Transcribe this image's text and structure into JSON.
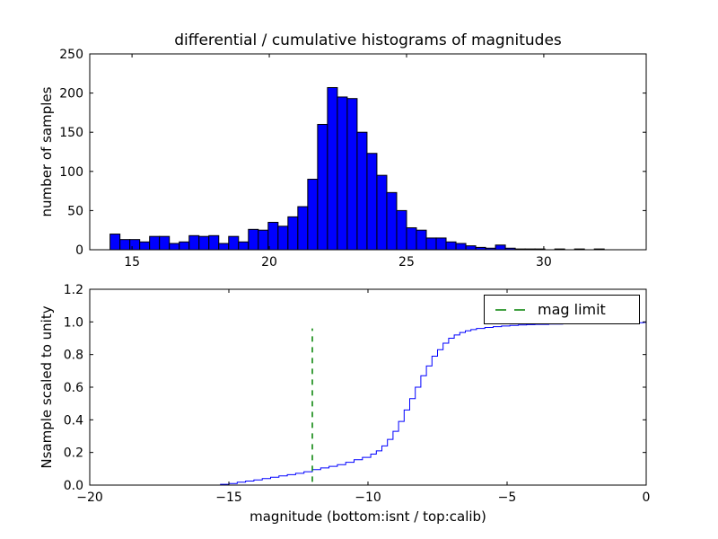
{
  "figure": {
    "background": "#ffffff"
  },
  "chart_data": [
    {
      "type": "bar",
      "title": "differential / cumulative histograms of magnitudes",
      "ylabel": "number of samples",
      "xlim": [
        13.46,
        33.73
      ],
      "ylim": [
        0,
        250
      ],
      "xtick_values": [
        15,
        20,
        25,
        30
      ],
      "xtick_labels": [
        "15",
        "20",
        "25",
        "30"
      ],
      "ytick_values": [
        0,
        50,
        100,
        150,
        200,
        250
      ],
      "ytick_labels": [
        "0",
        "50",
        "100",
        "150",
        "200",
        "250"
      ],
      "bar_color": "#0000ff",
      "bar_edge_color": "#000000",
      "bin_start": 14.2,
      "bin_width": 0.36,
      "counts": [
        20,
        13,
        13,
        10,
        17,
        17,
        8,
        10,
        18,
        17,
        18,
        8,
        17,
        10,
        26,
        25,
        35,
        30,
        42,
        55,
        90,
        160,
        207,
        195,
        193,
        150,
        123,
        95,
        73,
        50,
        28,
        25,
        15,
        15,
        10,
        8,
        5,
        3,
        2,
        6,
        2,
        1,
        1,
        1,
        0,
        1,
        0,
        1,
        0,
        1
      ]
    },
    {
      "type": "line",
      "ylabel": "Nsample scaled to unity",
      "xlabel": "magnitude (bottom:isnt / top:calib)",
      "xlim": [
        -20,
        0
      ],
      "ylim": [
        0,
        1.2
      ],
      "xtick_values": [
        -20,
        -15,
        -10,
        -5,
        0
      ],
      "xtick_labels": [
        "−20",
        "−15",
        "−10",
        "−5",
        "0"
      ],
      "ytick_values": [
        0,
        0.2,
        0.4,
        0.6,
        0.8,
        1.0,
        1.2
      ],
      "ytick_labels": [
        "0.0",
        "0.2",
        "0.4",
        "0.6",
        "0.8",
        "1.0",
        "1.2"
      ],
      "line_color": "#0000ff",
      "points": [
        [
          -20,
          0
        ],
        [
          -15.4,
          0
        ],
        [
          -15.3,
          0.005
        ],
        [
          -15,
          0.01
        ],
        [
          -14.7,
          0.018
        ],
        [
          -14.4,
          0.025
        ],
        [
          -14.1,
          0.032
        ],
        [
          -13.8,
          0.04
        ],
        [
          -13.5,
          0.048
        ],
        [
          -13.2,
          0.056
        ],
        [
          -12.9,
          0.064
        ],
        [
          -12.6,
          0.072
        ],
        [
          -12.3,
          0.082
        ],
        [
          -12,
          0.095
        ],
        [
          -11.7,
          0.105
        ],
        [
          -11.4,
          0.115
        ],
        [
          -11.1,
          0.125
        ],
        [
          -10.8,
          0.14
        ],
        [
          -10.5,
          0.155
        ],
        [
          -10.2,
          0.17
        ],
        [
          -9.9,
          0.19
        ],
        [
          -9.7,
          0.21
        ],
        [
          -9.5,
          0.24
        ],
        [
          -9.3,
          0.28
        ],
        [
          -9.1,
          0.33
        ],
        [
          -8.9,
          0.39
        ],
        [
          -8.7,
          0.46
        ],
        [
          -8.5,
          0.53
        ],
        [
          -8.3,
          0.6
        ],
        [
          -8.1,
          0.67
        ],
        [
          -7.9,
          0.73
        ],
        [
          -7.7,
          0.79
        ],
        [
          -7.5,
          0.83
        ],
        [
          -7.3,
          0.87
        ],
        [
          -7.1,
          0.9
        ],
        [
          -6.9,
          0.92
        ],
        [
          -6.7,
          0.935
        ],
        [
          -6.5,
          0.945
        ],
        [
          -6.3,
          0.953
        ],
        [
          -6.1,
          0.96
        ],
        [
          -5.8,
          0.966
        ],
        [
          -5.5,
          0.971
        ],
        [
          -5.2,
          0.975
        ],
        [
          -4.9,
          0.978
        ],
        [
          -4.6,
          0.981
        ],
        [
          -4.3,
          0.983
        ],
        [
          -4,
          0.985
        ],
        [
          -3.5,
          0.987
        ],
        [
          -3,
          0.989
        ],
        [
          -2.5,
          0.99
        ],
        [
          -2,
          0.992
        ],
        [
          -1.5,
          0.993
        ],
        [
          -1,
          0.994
        ],
        [
          -0.5,
          0.995
        ],
        [
          -0.1,
          0.997
        ],
        [
          0,
          1
        ]
      ],
      "mag_limit": {
        "x": -12,
        "label": "mag limit",
        "color": "#008000",
        "linestyle": "dashed",
        "y_range": [
          0.02,
          0.96
        ]
      }
    }
  ]
}
